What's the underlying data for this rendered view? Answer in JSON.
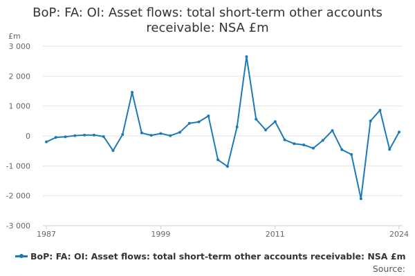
{
  "chart_data": {
    "type": "line",
    "title_line1": "BoP: FA: OI: Asset flows: total short-term other accounts",
    "title_line2": "receivable: NSA £m",
    "ylabel": "£m",
    "ylim": [
      -3000,
      3000
    ],
    "yticks": [
      -3000,
      -2000,
      -1000,
      0,
      1000,
      2000,
      3000
    ],
    "ytick_labels": [
      "-3 000",
      "-2 000",
      "-1 000",
      "0",
      "1 000",
      "2 000",
      "3 000"
    ],
    "xlim": [
      1987,
      2024
    ],
    "xticks": [
      1987,
      1999,
      2011,
      2024
    ],
    "xtick_labels": [
      "1987",
      "1999",
      "2011",
      "2024"
    ],
    "grid": true,
    "legend_position": "bottom-left",
    "series": [
      {
        "name": "BoP: FA: OI: Asset flows: total short-term other accounts receivable: NSA £m",
        "color": "#1a7ab5",
        "x": [
          1987,
          1988,
          1989,
          1990,
          1991,
          1992,
          1993,
          1994,
          1995,
          1996,
          1997,
          1998,
          1999,
          2000,
          2001,
          2002,
          2003,
          2004,
          2005,
          2006,
          2007,
          2008,
          2009,
          2010,
          2011,
          2012,
          2013,
          2014,
          2015,
          2016,
          2017,
          2018,
          2019,
          2020,
          2021,
          2022,
          2023,
          2024
        ],
        "values": [
          -200,
          -50,
          -30,
          10,
          30,
          30,
          -20,
          -490,
          50,
          1460,
          100,
          20,
          80,
          10,
          120,
          420,
          470,
          670,
          -800,
          -1020,
          300,
          2650,
          560,
          200,
          480,
          -130,
          -260,
          -300,
          -410,
          -150,
          180,
          -460,
          -620,
          -2100,
          500,
          860,
          -450,
          130
        ]
      }
    ]
  },
  "source_label": "Source:"
}
